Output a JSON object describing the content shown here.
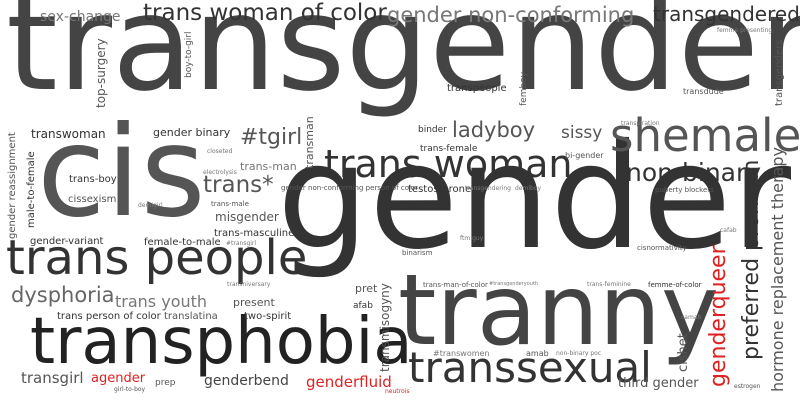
{
  "words": [
    {
      "text": "transgender",
      "color": "#444444",
      "rotate": 0
    },
    {
      "text": "gender",
      "color": "#333333",
      "rotate": 0
    },
    {
      "text": "cis",
      "color": "#555555",
      "rotate": 0
    },
    {
      "text": "tranny",
      "color": "#444444",
      "rotate": 0
    },
    {
      "text": "transphobia",
      "color": "#222222",
      "rotate": 0
    },
    {
      "text": "trans people",
      "color": "#333333",
      "rotate": 0
    },
    {
      "text": "trans woman",
      "color": "#333333",
      "rotate": 0
    },
    {
      "text": "shemale",
      "color": "#555555",
      "rotate": 0
    },
    {
      "text": "transsexual",
      "color": "#333333",
      "rotate": 0
    },
    {
      "text": "trans woman of color",
      "color": "#333333",
      "rotate": 0
    },
    {
      "text": "gender non-conforming",
      "color": "#777777",
      "rotate": 0
    },
    {
      "text": "transgendered",
      "color": "#333333",
      "rotate": 0
    },
    {
      "text": "non-binary",
      "color": "#333333",
      "rotate": 0
    },
    {
      "text": "preferred pronoun",
      "color": "#333333",
      "rotate": -90
    },
    {
      "text": "genderqueer",
      "color": "#dd2222",
      "rotate": -90
    },
    {
      "text": "hormone replacement therapy",
      "color": "#555555",
      "rotate": -90
    },
    {
      "text": "ladyboy",
      "color": "#555555",
      "rotate": 0
    },
    {
      "text": "dysphoria",
      "color": "#666666",
      "rotate": 0
    },
    {
      "text": "#tgirl",
      "color": "#555555",
      "rotate": 0
    },
    {
      "text": "trans*",
      "color": "#555555",
      "rotate": 0
    },
    {
      "text": "sissy",
      "color": "#555555",
      "rotate": 0
    },
    {
      "text": "trans youth",
      "color": "#777777",
      "rotate": 0
    },
    {
      "text": "sex-change",
      "color": "#777777",
      "rotate": 0
    },
    {
      "text": "transgirl",
      "color": "#555555",
      "rotate": 0
    },
    {
      "text": "agender",
      "color": "#dd2222",
      "rotate": 0
    },
    {
      "text": "genderbend",
      "color": "#444444",
      "rotate": 0
    },
    {
      "text": "genderfluid",
      "color": "#dd2222",
      "rotate": 0
    },
    {
      "text": "third gender",
      "color": "#555555",
      "rotate": 0
    },
    {
      "text": "cishet",
      "color": "#555555",
      "rotate": -90
    },
    {
      "text": "transmisogyny",
      "color": "#555555",
      "rotate": -90
    },
    {
      "text": "top-surgery",
      "color": "#555555",
      "rotate": -90
    },
    {
      "text": "transwoman",
      "color": "#333333",
      "rotate": 0
    },
    {
      "text": "gender binary",
      "color": "#333333",
      "rotate": 0
    },
    {
      "text": "misgender",
      "color": "#555555",
      "rotate": 0
    },
    {
      "text": "present",
      "color": "#555555",
      "rotate": 0
    },
    {
      "text": "pret",
      "color": "#555555",
      "rotate": 0
    },
    {
      "text": "two-spirit",
      "color": "#333333",
      "rotate": 0
    },
    {
      "text": "trans person of color",
      "color": "#333333",
      "rotate": 0
    },
    {
      "text": "translatina",
      "color": "#555555",
      "rotate": 0
    },
    {
      "text": "trans-man",
      "color": "#777777",
      "rotate": 0
    },
    {
      "text": "transman",
      "color": "#555555",
      "rotate": -90
    },
    {
      "text": "trans-masculine",
      "color": "#333333",
      "rotate": 0
    },
    {
      "text": "female-to-male",
      "color": "#333333",
      "rotate": 0
    },
    {
      "text": "gender-variant",
      "color": "#333333",
      "rotate": 0
    },
    {
      "text": "gender reassignment",
      "color": "#555555",
      "rotate": -90
    },
    {
      "text": "male-to-female",
      "color": "#333333",
      "rotate": -90
    },
    {
      "text": "trans-boy",
      "color": "#333333",
      "rotate": 0
    },
    {
      "text": "cissexism",
      "color": "#555555",
      "rotate": 0
    },
    {
      "text": "testosterone",
      "color": "#333333",
      "rotate": 0
    },
    {
      "text": "transpeople",
      "color": "#333333",
      "rotate": 0
    },
    {
      "text": "trans-female",
      "color": "#333333",
      "rotate": 0
    },
    {
      "text": "binder",
      "color": "#333333",
      "rotate": 0
    },
    {
      "text": "bi-gender",
      "color": "#555555",
      "rotate": 0
    },
    {
      "text": "femboy",
      "color": "#555555",
      "rotate": -90
    },
    {
      "text": "transdude",
      "color": "#555555",
      "rotate": 0
    },
    {
      "text": "transgenders",
      "color": "#555555",
      "rotate": -90
    },
    {
      "text": "boy-to-girl",
      "color": "#555555",
      "rotate": -90
    },
    {
      "text": "femme presenting",
      "color": "#777777",
      "rotate": 0
    },
    {
      "text": "transpiration",
      "color": "#777777",
      "rotate": 0
    },
    {
      "text": "puberty blockers",
      "color": "#555555",
      "rotate": 0
    },
    {
      "text": "gender non-conforming person of color",
      "color": "#555555",
      "rotate": 0
    },
    {
      "text": "transgendering",
      "color": "#777777",
      "rotate": 0
    },
    {
      "text": "demiboy",
      "color": "#777777",
      "rotate": 0
    },
    {
      "text": "electrolysis",
      "color": "#777777",
      "rotate": 0
    },
    {
      "text": "closeted",
      "color": "#777777",
      "rotate": 0
    },
    {
      "text": "demigirl",
      "color": "#777777",
      "rotate": 0
    },
    {
      "text": "trans-male",
      "color": "#555555",
      "rotate": 0
    },
    {
      "text": "#transgirl",
      "color": "#777777",
      "rotate": 0
    },
    {
      "text": "transniversary",
      "color": "#777777",
      "rotate": 0
    },
    {
      "text": "binarism",
      "color": "#555555",
      "rotate": 0
    },
    {
      "text": "ftm guy",
      "color": "#777777",
      "rotate": 0
    },
    {
      "text": "cisnormativity",
      "color": "#555555",
      "rotate": 0
    },
    {
      "text": "cafab",
      "color": "#777777",
      "rotate": 0
    },
    {
      "text": "trans-man-of-color",
      "color": "#555555",
      "rotate": 0
    },
    {
      "text": "#transgenderyouth",
      "color": "#777777",
      "rotate": 0
    },
    {
      "text": "trans-feminine",
      "color": "#777777",
      "rotate": 0
    },
    {
      "text": "femme-of-color",
      "color": "#333333",
      "rotate": 0
    },
    {
      "text": "afab",
      "color": "#333333",
      "rotate": 0
    },
    {
      "text": "camab",
      "color": "#777777",
      "rotate": 0
    },
    {
      "text": "#transwomen",
      "color": "#777777",
      "rotate": 0
    },
    {
      "text": "amab",
      "color": "#555555",
      "rotate": 0
    },
    {
      "text": "non-binary poc",
      "color": "#777777",
      "rotate": 0
    },
    {
      "text": "prep",
      "color": "#555555",
      "rotate": 0
    },
    {
      "text": "girl-to-boy",
      "color": "#555555",
      "rotate": 0
    },
    {
      "text": "neutrois",
      "color": "#dd2222",
      "rotate": 0
    },
    {
      "text": "estrogen",
      "color": "#555555",
      "rotate": 0
    }
  ]
}
